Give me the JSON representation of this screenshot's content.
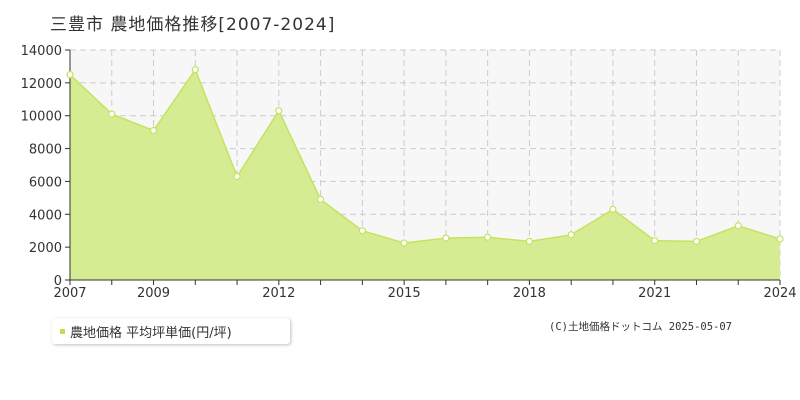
{
  "title": "三豊市  農地価格推移[2007-2024]",
  "legend_label": "農地価格 平均坪単価(円/坪)",
  "copyright": "(C)土地価格ドットコム 2025-05-07",
  "colors": {
    "fill": "#d6ec92",
    "line": "#c6e260",
    "marker_fill": "#ffffff",
    "plot_bg": "#f7f7f7",
    "grid": "#cccccc",
    "axis": "#333333",
    "legend_swatch": "#bde04f"
  },
  "chart_data": {
    "type": "area",
    "title": "三豊市  農地価格推移[2007-2024]",
    "xlabel": "",
    "ylabel": "",
    "x": [
      2007,
      2008,
      2009,
      2010,
      2011,
      2012,
      2013,
      2014,
      2015,
      2016,
      2017,
      2018,
      2019,
      2020,
      2021,
      2022,
      2023,
      2024
    ],
    "series": [
      {
        "name": "農地価格 平均坪単価(円/坪)",
        "values": [
          12500,
          10100,
          9100,
          12800,
          6300,
          10300,
          4900,
          3000,
          2250,
          2550,
          2600,
          2350,
          2750,
          4300,
          2400,
          2350,
          3300,
          2500
        ]
      }
    ],
    "xlim": [
      2007,
      2024
    ],
    "ylim": [
      0,
      14000
    ],
    "y_ticks": [
      0,
      2000,
      4000,
      6000,
      8000,
      10000,
      12000,
      14000
    ],
    "x_tick_labels": [
      2007,
      2009,
      2012,
      2015,
      2018,
      2021,
      2024
    ],
    "grid": true,
    "legend_position": "bottom-left"
  }
}
